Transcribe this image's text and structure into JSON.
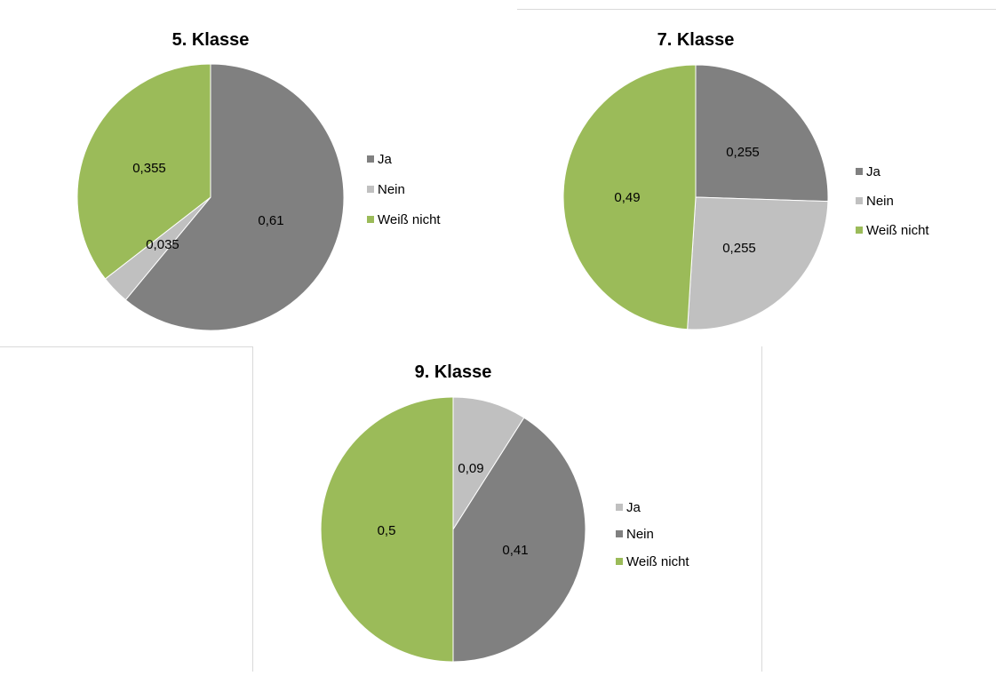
{
  "chart_data": [
    {
      "type": "pie",
      "title": "5. Klasse",
      "categories": [
        "Ja",
        "Nein",
        "Weiß nicht"
      ],
      "values": [
        0.61,
        0.035,
        0.355
      ],
      "value_labels": [
        "0,61",
        "0,035",
        "0,355"
      ],
      "colors": [
        "#808080",
        "#c0c0c0",
        "#9bbb59"
      ],
      "legend": {
        "position": "right",
        "entries": [
          {
            "label": "Ja",
            "color": "#808080"
          },
          {
            "label": "Nein",
            "color": "#c0c0c0"
          },
          {
            "label": "Weiß nicht",
            "color": "#9bbb59"
          }
        ]
      }
    },
    {
      "type": "pie",
      "title": "7. Klasse",
      "categories": [
        "Ja",
        "Nein",
        "Weiß nicht"
      ],
      "values": [
        0.255,
        0.255,
        0.49
      ],
      "value_labels": [
        "0,255",
        "0,255",
        "0,49"
      ],
      "colors": [
        "#808080",
        "#c0c0c0",
        "#9bbb59"
      ],
      "legend": {
        "position": "right",
        "entries": [
          {
            "label": "Ja",
            "color": "#808080"
          },
          {
            "label": "Nein",
            "color": "#c0c0c0"
          },
          {
            "label": "Weiß nicht",
            "color": "#9bbb59"
          }
        ]
      }
    },
    {
      "type": "pie",
      "title": "9. Klasse",
      "categories": [
        "Ja",
        "Nein",
        "Weiß nicht"
      ],
      "values": [
        0.09,
        0.41,
        0.5
      ],
      "value_labels": [
        "0,09",
        "0,41",
        "0,5"
      ],
      "colors": [
        "#c0c0c0",
        "#808080",
        "#9bbb59"
      ],
      "legend": {
        "position": "right",
        "entries": [
          {
            "label": "Ja",
            "color": "#c0c0c0"
          },
          {
            "label": "Nein",
            "color": "#808080"
          },
          {
            "label": "Weiß nicht",
            "color": "#9bbb59"
          }
        ]
      }
    }
  ]
}
